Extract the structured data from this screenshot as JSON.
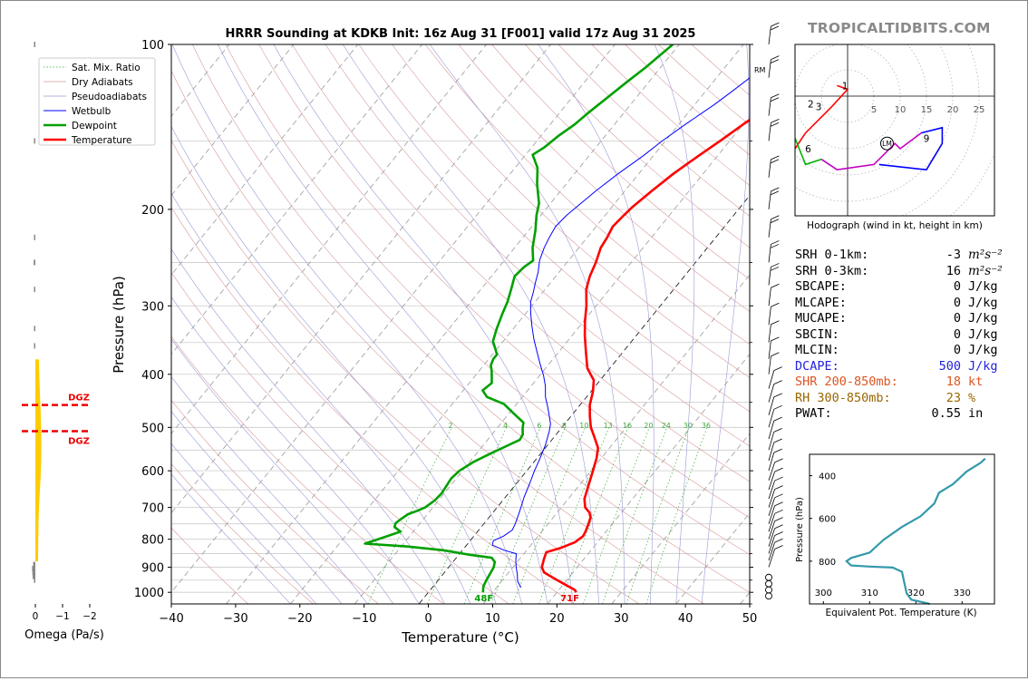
{
  "chart_data": [
    {
      "type": "line",
      "chart_kind": "skew-t log-p",
      "title": "HRRR Sounding at KDKB Init: 16z Aug 31 [F001] valid 17z Aug 31 2025",
      "xlabel": "Temperature (°C)",
      "ylabel": "Pressure (hPa)",
      "xlim": [
        -40,
        50
      ],
      "ylim": [
        1050,
        100
      ],
      "x_ticks": [
        -40,
        -30,
        -20,
        -10,
        0,
        10,
        20,
        30,
        40,
        50
      ],
      "y_ticks": [
        100,
        200,
        300,
        400,
        500,
        600,
        700,
        800,
        900,
        1000
      ],
      "y_scale": "log",
      "legend": [
        "Sat. Mix. Ratio",
        "Dry Adiabats",
        "Pseudoadiabats",
        "Wetbulb",
        "Dewpoint",
        "Temperature"
      ],
      "legend_position": "top-left",
      "mixing_ratio_labels": [
        "2",
        "4",
        "6",
        "8",
        "10",
        "13",
        "16",
        "20",
        "24",
        "30",
        "36"
      ],
      "surface_labels": {
        "dewpoint": "48F",
        "temperature": "71F"
      },
      "series": [
        {
          "name": "Temperature",
          "color": "#ff0000",
          "points": [
            [
              23,
              1000
            ],
            [
              22.5,
              990
            ],
            [
              20,
              965
            ],
            [
              18,
              945
            ],
            [
              15.5,
              920
            ],
            [
              14.5,
              900
            ],
            [
              13.8,
              870
            ],
            [
              13.3,
              845
            ],
            [
              15,
              830
            ],
            [
              16.5,
              810
            ],
            [
              17,
              790
            ],
            [
              16.8,
              775
            ],
            [
              16.3,
              750
            ],
            [
              15.8,
              730
            ],
            [
              15,
              715
            ],
            [
              13.7,
              700
            ],
            [
              12.5,
              675
            ],
            [
              11.5,
              640
            ],
            [
              10.3,
              600
            ],
            [
              9.3,
              570
            ],
            [
              8.2,
              545
            ],
            [
              6.2,
              520
            ],
            [
              4.5,
              500
            ],
            [
              3,
              478
            ],
            [
              1.5,
              455
            ],
            [
              0.3,
              430
            ],
            [
              -1,
              410
            ],
            [
              -3.5,
              390
            ],
            [
              -5.7,
              365
            ],
            [
              -8,
              340
            ],
            [
              -9.8,
              320
            ],
            [
              -11.5,
              300
            ],
            [
              -13.6,
              280
            ],
            [
              -14.7,
              265
            ],
            [
              -15.5,
              250
            ],
            [
              -16.6,
              235
            ],
            [
              -16.9,
              225
            ],
            [
              -17.4,
              215
            ],
            [
              -17.1,
              205
            ],
            [
              -16.8,
              198
            ],
            [
              -15.8,
              185
            ],
            [
              -14.6,
              172
            ],
            [
              -13,
              160
            ],
            [
              -11.5,
              150
            ],
            [
              -10,
              140
            ],
            [
              -8,
              129
            ],
            [
              -6.8,
              122
            ],
            [
              -5.2,
              113
            ],
            [
              -4,
              106
            ],
            [
              -3,
              101
            ],
            [
              -2.8,
              100
            ]
          ]
        },
        {
          "name": "Dewpoint",
          "color": "#00a000",
          "points": [
            [
              8.5,
              1000
            ],
            [
              7.8,
              975
            ],
            [
              7.5,
              950
            ],
            [
              7,
              900
            ],
            [
              6.5,
              880
            ],
            [
              5.5,
              865
            ],
            [
              2,
              855
            ],
            [
              -3,
              838
            ],
            [
              -9,
              825
            ],
            [
              -16,
              815
            ],
            [
              -14,
              795
            ],
            [
              -12,
              775
            ],
            [
              -13.5,
              760
            ],
            [
              -13.8,
              748
            ],
            [
              -13.5,
              735
            ],
            [
              -13,
              720
            ],
            [
              -12,
              710
            ],
            [
              -11.2,
              700
            ],
            [
              -10.6,
              680
            ],
            [
              -10.4,
              660
            ],
            [
              -10.6,
              640
            ],
            [
              -10.8,
              620
            ],
            [
              -10.5,
              600
            ],
            [
              -9.4,
              578
            ],
            [
              -7.8,
              558
            ],
            [
              -6.2,
              540
            ],
            [
              -5,
              527
            ],
            [
              -5.2,
              515
            ],
            [
              -6,
              502
            ],
            [
              -6.6,
              490
            ],
            [
              -9.5,
              470
            ],
            [
              -12,
              453
            ],
            [
              -15.5,
              440
            ],
            [
              -17,
              428
            ],
            [
              -16.5,
              415
            ],
            [
              -18,
              395
            ],
            [
              -18.9,
              385
            ],
            [
              -19.3,
              375
            ],
            [
              -19.3,
              368
            ],
            [
              -20.2,
              360
            ],
            [
              -21.6,
              348
            ],
            [
              -22.6,
              330
            ],
            [
              -23.6,
              310
            ],
            [
              -24.3,
              295
            ],
            [
              -25.3,
              280
            ],
            [
              -26.4,
              265
            ],
            [
              -26.1,
              255
            ],
            [
              -25.5,
              248
            ],
            [
              -27.2,
              235
            ],
            [
              -29,
              218
            ],
            [
              -30.7,
              205
            ],
            [
              -31.8,
              195
            ],
            [
              -34.5,
              180
            ],
            [
              -36.5,
              168
            ],
            [
              -38.9,
              159
            ],
            [
              -38,
              154
            ],
            [
              -37.3,
              147
            ],
            [
              -36.2,
              140
            ],
            [
              -35.5,
              133
            ],
            [
              -34.5,
              125
            ],
            [
              -33.4,
              117
            ],
            [
              -32.3,
              110
            ],
            [
              -31.8,
              106
            ],
            [
              -31,
              100
            ]
          ]
        },
        {
          "name": "Wetbulb",
          "color": "#0000ff",
          "points": [
            [
              13.8,
              980
            ],
            [
              12.5,
              955
            ],
            [
              11.5,
              925
            ],
            [
              10.5,
              900
            ],
            [
              9.6,
              875
            ],
            [
              8.8,
              850
            ],
            [
              6.5,
              838
            ],
            [
              4,
              820
            ],
            [
              3.6,
              805
            ],
            [
              4.6,
              790
            ],
            [
              5.2,
              770
            ],
            [
              4.9,
              750
            ],
            [
              4.2,
              720
            ],
            [
              3.7,
              700
            ],
            [
              2.9,
              670
            ],
            [
              2.1,
              635
            ],
            [
              1.2,
              600
            ],
            [
              0.5,
              570
            ],
            [
              -0.3,
              540
            ],
            [
              -1.4,
              510
            ],
            [
              -2.2,
              493
            ],
            [
              -3.3,
              478
            ],
            [
              -4.7,
              460
            ],
            [
              -6.4,
              440
            ],
            [
              -7.8,
              420
            ],
            [
              -9.4,
              402
            ],
            [
              -11.5,
              382
            ],
            [
              -13.5,
              363
            ],
            [
              -15.5,
              345
            ],
            [
              -17.5,
              326
            ],
            [
              -19.3,
              309
            ],
            [
              -20.7,
              295
            ],
            [
              -21.5,
              283
            ],
            [
              -22.3,
              273
            ],
            [
              -23.3,
              260
            ],
            [
              -24.5,
              248
            ],
            [
              -25.4,
              235
            ],
            [
              -25.9,
              225
            ],
            [
              -26.3,
              215
            ],
            [
              -26,
              205
            ],
            [
              -25.5,
              198
            ],
            [
              -24.5,
              185
            ],
            [
              -23.2,
              172
            ],
            [
              -21.6,
              160
            ],
            [
              -20.5,
              150
            ],
            [
              -19,
              140
            ],
            [
              -17,
              129
            ],
            [
              -15.9,
              122
            ],
            [
              -14.5,
              113
            ],
            [
              -13.3,
              106
            ],
            [
              -12.3,
              101
            ],
            [
              -12,
              100
            ]
          ]
        }
      ]
    },
    {
      "type": "line",
      "chart_kind": "omega profile",
      "xlabel": "Omega (Pa/s)",
      "x_ticks": [
        "0",
        "−1",
        "−2"
      ],
      "dgz_labels": [
        "DGZ",
        "DGZ"
      ],
      "dgz_pressure": [
        455,
        508
      ]
    },
    {
      "type": "line",
      "chart_kind": "hodograph",
      "xlabel": "Hodograph (wind in kt, height in km)",
      "ring_labels": [
        "5",
        "10",
        "15",
        "20",
        "25"
      ],
      "height_labels": [
        "1",
        "2",
        "3",
        "6",
        "9"
      ],
      "storm_motion_label": "LM",
      "series": [
        {
          "name": "0-1 km",
          "color": "#ff0000",
          "points": [
            [
              -2,
              2
            ],
            [
              0,
              1.3
            ],
            [
              -3,
              -2
            ],
            [
              -5,
              -4
            ],
            [
              -8,
              -7
            ]
          ]
        },
        {
          "name": "1-3 km",
          "color": "#ff0000",
          "points": [
            [
              -8,
              -7
            ],
            [
              -10,
              -10
            ]
          ]
        },
        {
          "name": "3-6 km",
          "color": "#00b000",
          "points": [
            [
              -10,
              -8
            ],
            [
              -8,
              -13
            ],
            [
              -5,
              -12
            ]
          ]
        },
        {
          "name": "6-9 km",
          "color": "#c000c0",
          "points": [
            [
              -5,
              -12
            ],
            [
              -2,
              -14
            ],
            [
              5,
              -13
            ],
            [
              9,
              -9
            ],
            [
              10,
              -10
            ],
            [
              14,
              -7
            ]
          ]
        },
        {
          "name": "9+ km",
          "color": "#0000ff",
          "points": [
            [
              14,
              -7
            ],
            [
              18,
              -6
            ],
            [
              18,
              -9
            ],
            [
              15,
              -14
            ],
            [
              6,
              -13
            ]
          ]
        }
      ]
    },
    {
      "type": "line",
      "chart_kind": "equivalent potential temperature profile",
      "xlabel": "Equivalent Pot. Temperature (K)",
      "ylabel": "Pressure (hPa)",
      "x_ticks": [
        300,
        310,
        320,
        330
      ],
      "y_ticks": [
        400,
        600,
        800
      ],
      "xlim": [
        297,
        337
      ],
      "ylim": [
        1000,
        300
      ],
      "series": [
        {
          "name": "theta-e",
          "color": "#3399aa",
          "points": [
            [
              323,
              1000
            ],
            [
              319,
              980
            ],
            [
              318,
              950
            ],
            [
              317.5,
              900
            ],
            [
              317,
              850
            ],
            [
              315,
              830
            ],
            [
              310,
              825
            ],
            [
              306,
              820
            ],
            [
              305,
              800
            ],
            [
              306,
              785
            ],
            [
              310,
              760
            ],
            [
              313,
              700
            ],
            [
              317,
              640
            ],
            [
              321,
              590
            ],
            [
              324,
              530
            ],
            [
              325,
              480
            ],
            [
              328,
              440
            ],
            [
              331,
              380
            ],
            [
              334,
              340
            ],
            [
              335,
              320
            ]
          ]
        }
      ]
    }
  ],
  "watermark": "TROPICALTIDBITS.COM",
  "labels": {
    "rm": "RM",
    "dgz": "DGZ"
  },
  "stats": [
    {
      "label": "SRH 0-1km:",
      "value": "-3",
      "unit": "m²s⁻²",
      "color": "#000000"
    },
    {
      "label": "SRH 0-3km:",
      "value": "16",
      "unit": "m²s⁻²",
      "color": "#000000"
    },
    {
      "label": "SBCAPE:",
      "value": "0",
      "unit": "J/kg",
      "color": "#000000"
    },
    {
      "label": "MLCAPE:",
      "value": "0",
      "unit": "J/kg",
      "color": "#000000"
    },
    {
      "label": "MUCAPE:",
      "value": "0",
      "unit": "J/kg",
      "color": "#000000"
    },
    {
      "label": "SBCIN:",
      "value": "0",
      "unit": "J/kg",
      "color": "#000000"
    },
    {
      "label": "MLCIN:",
      "value": "0",
      "unit": "J/kg",
      "color": "#000000"
    },
    {
      "label": "DCAPE:",
      "value": "500",
      "unit": "J/kg",
      "color": "#2222dd"
    },
    {
      "label": "SHR 200-850mb:",
      "value": "18",
      "unit": "kt",
      "color": "#dd5522"
    },
    {
      "label": "RH 300-850mb:",
      "value": "23",
      "unit": "%",
      "color": "#996600"
    },
    {
      "label": "PWAT:",
      "value": "0.55",
      "unit": "in",
      "color": "#000000"
    }
  ]
}
